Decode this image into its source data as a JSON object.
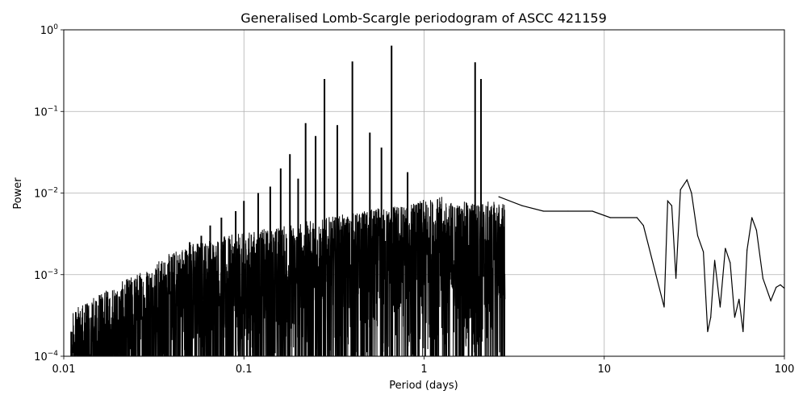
{
  "chart_data": {
    "type": "line",
    "title": "Generalised Lomb-Scargle periodogram of ASCC 421159",
    "xlabel": "Period (days)",
    "ylabel": "Power",
    "xscale": "log",
    "yscale": "log",
    "xlim": [
      0.01,
      100
    ],
    "ylim": [
      0.0001,
      1
    ],
    "grid": true,
    "x_ticks": [
      {
        "value": 0.01,
        "label": "0.01"
      },
      {
        "value": 0.1,
        "label": "0.1"
      },
      {
        "value": 1,
        "label": "1"
      },
      {
        "value": 10,
        "label": "10"
      },
      {
        "value": 100,
        "label": "100"
      }
    ],
    "y_ticks": [
      {
        "value": 0.0001,
        "base": "10",
        "exp": "−4"
      },
      {
        "value": 0.001,
        "base": "10",
        "exp": "−3"
      },
      {
        "value": 0.01,
        "base": "10",
        "exp": "−2"
      },
      {
        "value": 0.1,
        "base": "10",
        "exp": "−1"
      },
      {
        "value": 1,
        "base": "10",
        "exp": "0"
      }
    ],
    "line_color": "#000000",
    "series": [
      {
        "x": [
          0.66,
          0.4,
          1.92,
          2.07,
          0.28,
          0.22,
          0.33,
          0.25,
          0.18,
          0.5,
          0.58,
          0.81,
          0.16,
          0.2,
          0.14,
          0.12,
          0.1,
          0.09,
          0.075,
          0.065,
          0.058,
          0.05,
          0.043,
          0.037,
          0.031,
          0.026,
          0.021,
          0.017,
          0.013,
          0.011
        ],
        "y": [
          0.64,
          0.41,
          0.4,
          0.25,
          0.25,
          0.072,
          0.068,
          0.05,
          0.03,
          0.055,
          0.036,
          0.018,
          0.02,
          0.015,
          0.012,
          0.01,
          0.008,
          0.006,
          0.005,
          0.004,
          0.003,
          0.0025,
          0.0015,
          0.001,
          0.0007,
          0.0004,
          0.00028,
          0.00025,
          0.0002,
          0.0002
        ]
      },
      {
        "x": [
          2.6,
          3.5,
          4.6,
          6.3,
          8.6,
          10.8,
          15.2,
          16.5,
          21.5,
          22.5,
          23.7,
          25.0,
          26.5,
          28.8,
          30.5,
          33.0,
          35.5,
          37.5,
          39.0,
          41.0,
          44.0,
          47.0,
          50.0,
          53.0,
          56.0,
          59.0,
          62.0,
          66.0,
          70.0,
          76.0,
          84.0,
          90.0,
          95.0,
          100.0
        ],
        "y": [
          0.009,
          0.007,
          0.006,
          0.006,
          0.006,
          0.005,
          0.005,
          0.004,
          0.0004,
          0.008,
          0.007,
          0.0009,
          0.011,
          0.0145,
          0.01,
          0.003,
          0.0019,
          0.0002,
          0.0003,
          0.0015,
          0.0004,
          0.0021,
          0.0014,
          0.0003,
          0.0005,
          0.0002,
          0.002,
          0.005,
          0.0035,
          0.0009,
          0.00048,
          0.0007,
          0.00075,
          0.00068
        ]
      }
    ]
  }
}
